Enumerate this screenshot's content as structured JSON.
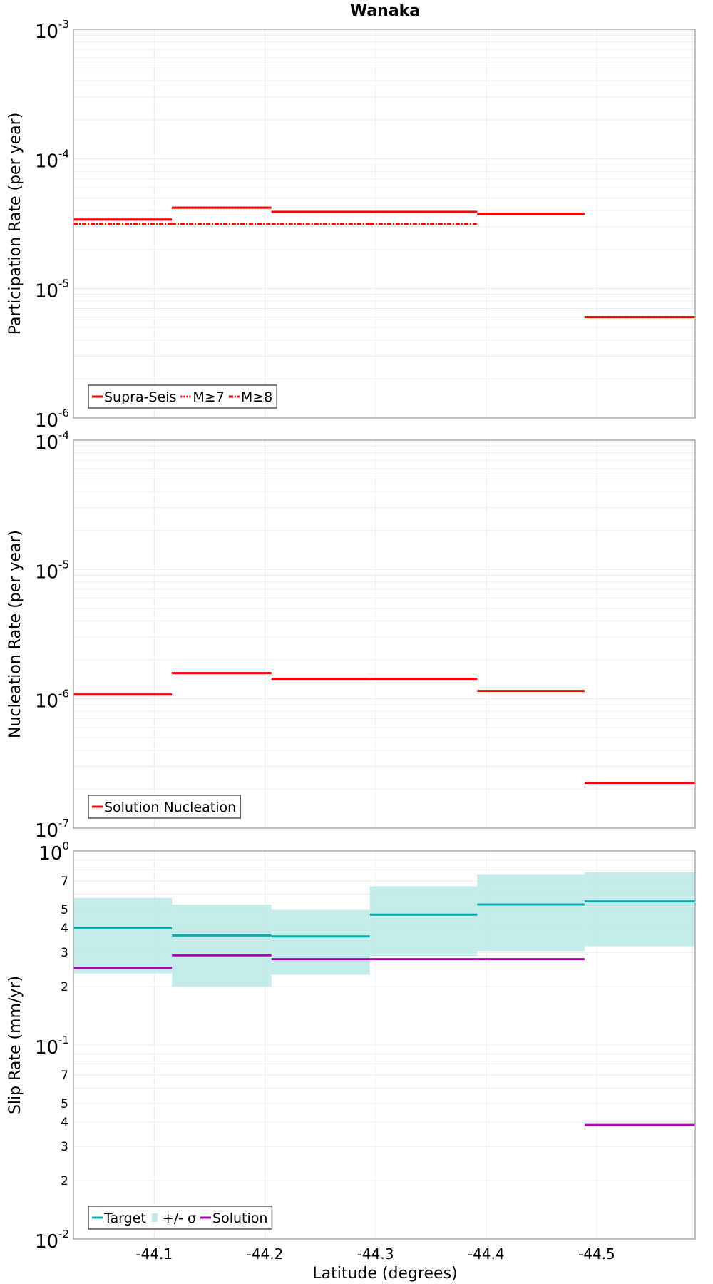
{
  "chart_data": [
    {
      "type": "line",
      "title": "Wanaka",
      "xlabel": "Latitude (degrees)",
      "ylabel": "Participation Rate (per year)",
      "yscale": "log",
      "ylim": [
        1e-06,
        0.001
      ],
      "xlim": [
        -44.027,
        -44.589
      ],
      "x_ticks": [
        "-44.1",
        "-44.2",
        "-44.3",
        "-44.4",
        "-44.5"
      ],
      "x_tick_values": [
        -44.1,
        -44.2,
        -44.3,
        -44.4,
        -44.5
      ],
      "y_ticks": [
        {
          "base": "10",
          "exp": "-3",
          "value": 0.001
        },
        {
          "base": "10",
          "exp": "-4",
          "value": 0.0001
        },
        {
          "base": "10",
          "exp": "-5",
          "value": 1e-05
        },
        {
          "base": "10",
          "exp": "-6",
          "value": 1e-06
        }
      ],
      "legend_position": "bottom-left",
      "segment_bounds": [
        -44.027,
        -44.116,
        -44.206,
        -44.295,
        -44.392,
        -44.489,
        -44.589
      ],
      "series": [
        {
          "name": "Supra-Seis",
          "style": "solid",
          "color": "#ff0000",
          "values": [
            3.4e-05,
            4.2e-05,
            3.9e-05,
            3.9e-05,
            3.77e-05,
            6e-06
          ]
        },
        {
          "name": "M≥7",
          "style": "dotted",
          "color": "#ff0000",
          "values": [
            3.4e-05,
            4.2e-05,
            3.9e-05,
            3.9e-05,
            3.77e-05,
            6e-06
          ]
        },
        {
          "name": "M≥8",
          "style": "dashdot",
          "color": "#ff0000",
          "values": [
            3.15e-05,
            3.15e-05,
            3.15e-05,
            3.15e-05,
            null,
            null
          ]
        }
      ]
    },
    {
      "type": "line",
      "ylabel": "Nucleation Rate (per year)",
      "yscale": "log",
      "ylim": [
        1e-07,
        0.0001
      ],
      "y_ticks": [
        {
          "base": "10",
          "exp": "-4",
          "value": 0.0001
        },
        {
          "base": "10",
          "exp": "-5",
          "value": 1e-05
        },
        {
          "base": "10",
          "exp": "-6",
          "value": 1e-06
        },
        {
          "base": "10",
          "exp": "-7",
          "value": 1e-07
        }
      ],
      "legend_position": "bottom-left",
      "series": [
        {
          "name": "Solution Nucleation",
          "style": "solid",
          "color": "#ff0000",
          "values": [
            1.08e-06,
            1.58e-06,
            1.43e-06,
            1.43e-06,
            1.15e-06,
            2.24e-07
          ]
        }
      ]
    },
    {
      "type": "line",
      "ylabel": "Slip Rate (mm/yr)",
      "yscale": "log",
      "ylim": [
        0.01,
        1
      ],
      "y_ticks": [
        {
          "base": "10",
          "exp": "0",
          "value": 1
        },
        {
          "base": "10",
          "exp": "-1",
          "value": 0.1
        },
        {
          "base": "10",
          "exp": "-2",
          "value": 0.01
        }
      ],
      "y_minor_labels": [
        {
          "label": "7",
          "value": 0.7
        },
        {
          "label": "5",
          "value": 0.5
        },
        {
          "label": "4",
          "value": 0.4
        },
        {
          "label": "3",
          "value": 0.3
        },
        {
          "label": "2",
          "value": 0.2
        },
        {
          "label": "7",
          "value": 0.07
        },
        {
          "label": "5",
          "value": 0.05
        },
        {
          "label": "4",
          "value": 0.04
        },
        {
          "label": "3",
          "value": 0.03
        },
        {
          "label": "2",
          "value": 0.02
        }
      ],
      "legend_position": "bottom-left",
      "series": [
        {
          "name": "Target",
          "style": "solid",
          "color": "#00b0b0",
          "values": [
            0.4,
            0.367,
            0.363,
            0.47,
            0.53,
            0.55
          ]
        },
        {
          "name": "+/- σ",
          "style": "band",
          "color": "#c0ebea",
          "upper": [
            0.574,
            0.53,
            0.496,
            0.658,
            0.76,
            0.776
          ],
          "lower": [
            0.234,
            0.2,
            0.23,
            0.288,
            0.305,
            0.323
          ]
        },
        {
          "name": "Solution",
          "style": "solid",
          "color": "#b000b8",
          "values": [
            0.25,
            0.29,
            0.277,
            0.277,
            0.277,
            0.0387
          ]
        }
      ]
    }
  ]
}
